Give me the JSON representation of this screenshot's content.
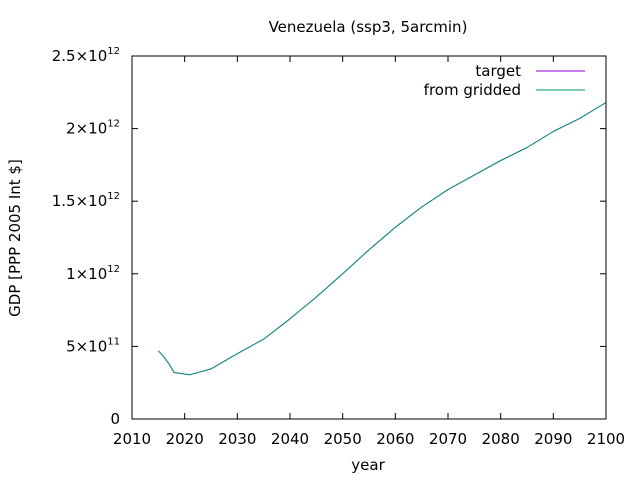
{
  "chart_data": {
    "type": "line",
    "title": "Venezuela (ssp3, 5arcmin)",
    "xlabel": "year",
    "ylabel": "GDP [PPP 2005 Int $]",
    "xlim": [
      2010,
      2100
    ],
    "ylim": [
      0,
      2500000000000
    ],
    "grid": false,
    "legend_position": "top-right",
    "x_ticks": [
      {
        "value": 2010,
        "label": "2010"
      },
      {
        "value": 2020,
        "label": "2020"
      },
      {
        "value": 2030,
        "label": "2030"
      },
      {
        "value": 2040,
        "label": "2040"
      },
      {
        "value": 2050,
        "label": "2050"
      },
      {
        "value": 2060,
        "label": "2060"
      },
      {
        "value": 2070,
        "label": "2070"
      },
      {
        "value": 2080,
        "label": "2080"
      },
      {
        "value": 2090,
        "label": "2090"
      },
      {
        "value": 2100,
        "label": "2100"
      }
    ],
    "y_ticks": [
      {
        "value": 0,
        "mantissa": "0",
        "exponent": ""
      },
      {
        "value": 500000000000,
        "mantissa": "5×10",
        "exponent": "11"
      },
      {
        "value": 1000000000000,
        "mantissa": "1×10",
        "exponent": "12"
      },
      {
        "value": 1500000000000,
        "mantissa": "1.5×10",
        "exponent": "12"
      },
      {
        "value": 2000000000000,
        "mantissa": "2×10",
        "exponent": "12"
      },
      {
        "value": 2500000000000,
        "mantissa": "2.5×10",
        "exponent": "12"
      }
    ],
    "x": [
      2015,
      2016,
      2017,
      2018,
      2019,
      2020,
      2021,
      2022,
      2023,
      2024,
      2025,
      2030,
      2035,
      2040,
      2045,
      2050,
      2055,
      2060,
      2065,
      2070,
      2075,
      2080,
      2085,
      2090,
      2095,
      2100
    ],
    "series": [
      {
        "name": "target",
        "color": "#9400d3",
        "values": [
          470000000000,
          430000000000,
          380000000000,
          320000000000,
          315000000000,
          310000000000,
          305000000000,
          315000000000,
          325000000000,
          335000000000,
          345000000000,
          450000000000,
          550000000000,
          690000000000,
          840000000000,
          1000000000000,
          1165000000000,
          1320000000000,
          1460000000000,
          1580000000000,
          1680000000000,
          1780000000000,
          1870000000000,
          1980000000000,
          2070000000000,
          2180000000000
        ]
      },
      {
        "name": "from gridded",
        "color": "#009e73",
        "values": [
          470000000000,
          430000000000,
          380000000000,
          320000000000,
          315000000000,
          310000000000,
          305000000000,
          315000000000,
          325000000000,
          335000000000,
          345000000000,
          450000000000,
          550000000000,
          690000000000,
          840000000000,
          1000000000000,
          1165000000000,
          1320000000000,
          1460000000000,
          1580000000000,
          1680000000000,
          1780000000000,
          1870000000000,
          1980000000000,
          2070000000000,
          2180000000000
        ]
      }
    ]
  }
}
